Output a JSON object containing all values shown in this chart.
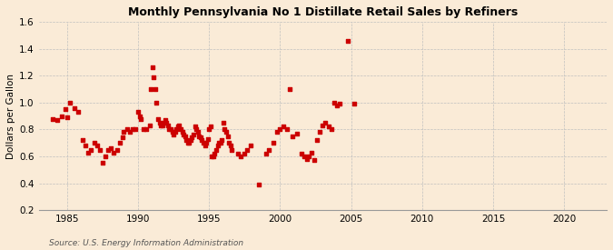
{
  "title": "Monthly Pennsylvania No 1 Distillate Retail Sales by Refiners",
  "ylabel": "Dollars per Gallon",
  "source": "Source: U.S. Energy Information Administration",
  "background_color": "#faebd7",
  "marker_color": "#cc0000",
  "xlim": [
    1983,
    2023
  ],
  "ylim": [
    0.2,
    1.6
  ],
  "yticks": [
    0.2,
    0.4,
    0.6,
    0.8,
    1.0,
    1.2,
    1.4,
    1.6
  ],
  "xticks": [
    1985,
    1990,
    1995,
    2000,
    2005,
    2010,
    2015,
    2020
  ],
  "data": [
    [
      1984.0,
      0.88
    ],
    [
      1984.3,
      0.87
    ],
    [
      1984.6,
      0.9
    ],
    [
      1984.9,
      0.95
    ],
    [
      1985.0,
      0.89
    ],
    [
      1985.2,
      1.0
    ],
    [
      1985.5,
      0.96
    ],
    [
      1985.8,
      0.93
    ],
    [
      1986.1,
      0.72
    ],
    [
      1986.3,
      0.68
    ],
    [
      1986.5,
      0.63
    ],
    [
      1986.7,
      0.65
    ],
    [
      1986.9,
      0.7
    ],
    [
      1987.1,
      0.68
    ],
    [
      1987.3,
      0.65
    ],
    [
      1987.5,
      0.55
    ],
    [
      1987.7,
      0.6
    ],
    [
      1987.9,
      0.65
    ],
    [
      1988.1,
      0.66
    ],
    [
      1988.3,
      0.63
    ],
    [
      1988.5,
      0.65
    ],
    [
      1988.7,
      0.7
    ],
    [
      1988.9,
      0.74
    ],
    [
      1989.0,
      0.78
    ],
    [
      1989.2,
      0.8
    ],
    [
      1989.4,
      0.78
    ],
    [
      1989.6,
      0.8
    ],
    [
      1989.8,
      0.8
    ],
    [
      1990.0,
      0.93
    ],
    [
      1990.1,
      0.9
    ],
    [
      1990.2,
      0.88
    ],
    [
      1990.4,
      0.8
    ],
    [
      1990.6,
      0.8
    ],
    [
      1990.8,
      0.83
    ],
    [
      1990.9,
      1.1
    ],
    [
      1991.0,
      1.26
    ],
    [
      1991.1,
      1.19
    ],
    [
      1991.2,
      1.1
    ],
    [
      1991.3,
      1.0
    ],
    [
      1991.4,
      0.88
    ],
    [
      1991.5,
      0.85
    ],
    [
      1991.6,
      0.83
    ],
    [
      1991.7,
      0.83
    ],
    [
      1991.8,
      0.85
    ],
    [
      1991.9,
      0.87
    ],
    [
      1992.0,
      0.85
    ],
    [
      1992.1,
      0.83
    ],
    [
      1992.2,
      0.8
    ],
    [
      1992.3,
      0.8
    ],
    [
      1992.4,
      0.78
    ],
    [
      1992.5,
      0.76
    ],
    [
      1992.6,
      0.78
    ],
    [
      1992.7,
      0.8
    ],
    [
      1992.8,
      0.82
    ],
    [
      1992.9,
      0.83
    ],
    [
      1993.0,
      0.8
    ],
    [
      1993.1,
      0.78
    ],
    [
      1993.2,
      0.76
    ],
    [
      1993.3,
      0.75
    ],
    [
      1993.4,
      0.72
    ],
    [
      1993.5,
      0.7
    ],
    [
      1993.6,
      0.7
    ],
    [
      1993.7,
      0.72
    ],
    [
      1993.8,
      0.74
    ],
    [
      1993.9,
      0.76
    ],
    [
      1994.0,
      0.82
    ],
    [
      1994.1,
      0.8
    ],
    [
      1994.2,
      0.78
    ],
    [
      1994.3,
      0.75
    ],
    [
      1994.4,
      0.74
    ],
    [
      1994.5,
      0.72
    ],
    [
      1994.6,
      0.7
    ],
    [
      1994.7,
      0.68
    ],
    [
      1994.8,
      0.7
    ],
    [
      1994.9,
      0.73
    ],
    [
      1995.0,
      0.8
    ],
    [
      1995.1,
      0.82
    ],
    [
      1995.2,
      0.6
    ],
    [
      1995.3,
      0.6
    ],
    [
      1995.4,
      0.62
    ],
    [
      1995.5,
      0.65
    ],
    [
      1995.6,
      0.68
    ],
    [
      1995.7,
      0.7
    ],
    [
      1995.8,
      0.7
    ],
    [
      1995.9,
      0.72
    ],
    [
      1996.0,
      0.85
    ],
    [
      1996.1,
      0.8
    ],
    [
      1996.2,
      0.78
    ],
    [
      1996.3,
      0.75
    ],
    [
      1996.4,
      0.7
    ],
    [
      1996.5,
      0.68
    ],
    [
      1996.6,
      0.65
    ],
    [
      1997.0,
      0.62
    ],
    [
      1997.2,
      0.6
    ],
    [
      1997.5,
      0.62
    ],
    [
      1997.7,
      0.65
    ],
    [
      1997.9,
      0.68
    ],
    [
      1998.5,
      0.39
    ],
    [
      1999.0,
      0.62
    ],
    [
      1999.2,
      0.65
    ],
    [
      1999.5,
      0.7
    ],
    [
      1999.8,
      0.78
    ],
    [
      2000.0,
      0.8
    ],
    [
      2000.2,
      0.82
    ],
    [
      2000.5,
      0.8
    ],
    [
      2000.7,
      1.1
    ],
    [
      2000.9,
      0.75
    ],
    [
      2001.2,
      0.77
    ],
    [
      2001.5,
      0.62
    ],
    [
      2001.7,
      0.6
    ],
    [
      2001.9,
      0.58
    ],
    [
      2002.0,
      0.6
    ],
    [
      2002.2,
      0.63
    ],
    [
      2002.4,
      0.57
    ],
    [
      2002.6,
      0.72
    ],
    [
      2002.8,
      0.78
    ],
    [
      2003.0,
      0.83
    ],
    [
      2003.2,
      0.85
    ],
    [
      2003.4,
      0.82
    ],
    [
      2003.6,
      0.8
    ],
    [
      2003.8,
      1.0
    ],
    [
      2004.0,
      0.98
    ],
    [
      2004.2,
      0.99
    ],
    [
      2004.8,
      1.46
    ],
    [
      2005.2,
      0.99
    ]
  ]
}
